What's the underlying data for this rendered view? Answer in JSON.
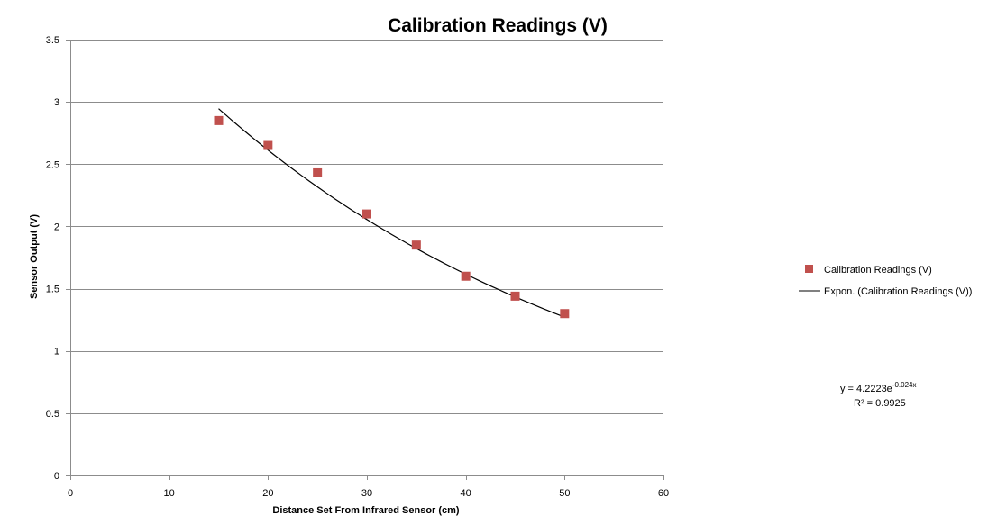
{
  "chart_data": {
    "type": "scatter",
    "title": "Calibration Readings (V)",
    "xlabel": "Distance  Set From Infrared Sensor (cm)",
    "ylabel": "Sensor  Output (V)",
    "xlim": [
      0,
      60
    ],
    "ylim": [
      0,
      3.5
    ],
    "x_ticks": [
      0,
      10,
      20,
      30,
      40,
      50,
      60
    ],
    "y_ticks": [
      0,
      0.5,
      1,
      1.5,
      2,
      2.5,
      3,
      3.5
    ],
    "y_tick_labels": [
      "0",
      "0.5",
      "1",
      "1.5",
      "2",
      "2.5",
      "3",
      "3.5"
    ],
    "grid": "horizontal",
    "legend_position": "right",
    "series": [
      {
        "name": "Calibration Readings (V)",
        "marker": "square",
        "color": "#c0504d",
        "x": [
          15,
          20,
          25,
          30,
          35,
          40,
          45,
          50
        ],
        "y": [
          2.85,
          2.65,
          2.43,
          2.1,
          1.85,
          1.6,
          1.44,
          1.3
        ]
      }
    ],
    "trendline": {
      "name": "Expon. (Calibration Readings (V))",
      "type": "exponential",
      "color": "#000000",
      "coefficient": 4.2223,
      "rate": -0.024,
      "x_range": [
        15,
        50
      ],
      "equation_base": "y = 4.2223e",
      "equation_exponent": "-0.024x",
      "r_squared_text": "R² = 0.9925"
    }
  }
}
